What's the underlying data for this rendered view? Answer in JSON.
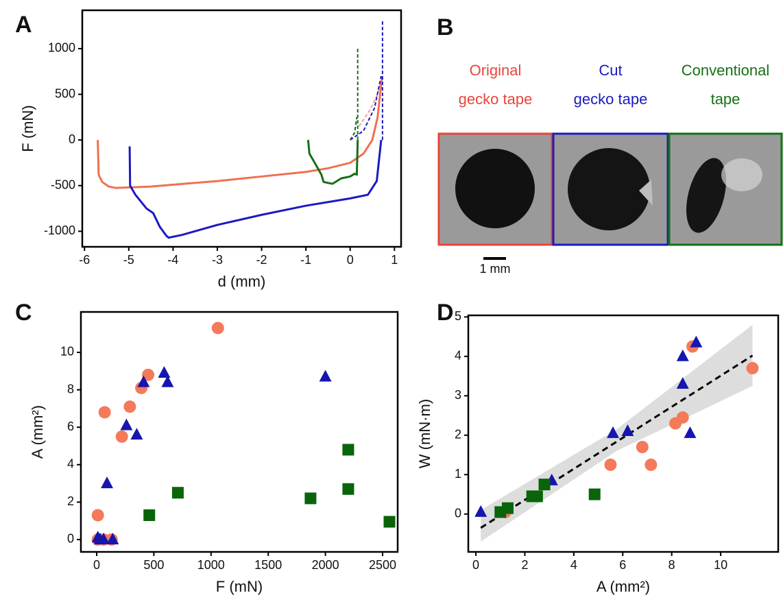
{
  "chart_data": [
    {
      "type": "line",
      "panel_label": "A",
      "x_label": "d (mm)",
      "y_label": "F (mN)",
      "xlim": [
        -6.05,
        1.15
      ],
      "ylim": [
        -1170,
        1420
      ],
      "xticks": [
        -6,
        -5,
        -4,
        -3,
        -2,
        -1,
        0,
        1
      ],
      "yticks": [
        -1000,
        -500,
        0,
        500,
        1000
      ],
      "series": [
        {
          "color": "#f07050",
          "dashed": false,
          "x": [
            -5.7,
            -5.68,
            -5.6,
            -5.45,
            -5.3,
            -4.5,
            -4,
            -3,
            -2,
            -1,
            -0.5,
            0,
            0.3,
            0.5,
            0.62,
            0.72
          ],
          "values": [
            0,
            -380,
            -460,
            -510,
            -525,
            -510,
            -490,
            -450,
            -400,
            -350,
            -310,
            -250,
            -150,
            0,
            250,
            700
          ]
        },
        {
          "color": "#f4a090",
          "dashed": true,
          "x": [
            0.2,
            0.45,
            0.6,
            0.7
          ],
          "values": [
            150,
            330,
            480,
            650
          ]
        },
        {
          "color": "#1a1ac0",
          "dashed": false,
          "x": [
            -4.98,
            -4.97,
            -4.85,
            -4.6,
            -4.45,
            -4.3,
            -4.15,
            -4.1,
            -3.8,
            -3,
            -2,
            -1,
            0,
            0.4,
            0.6,
            0.7
          ],
          "values": [
            -70,
            -500,
            -600,
            -750,
            -800,
            -950,
            -1050,
            -1070,
            -1040,
            -930,
            -820,
            -720,
            -640,
            -600,
            -450,
            0
          ]
        },
        {
          "color": "#1a1ac0",
          "dashed": true,
          "x": [
            0,
            0.3,
            0.55,
            0.7
          ],
          "values": [
            0,
            100,
            350,
            700
          ]
        },
        {
          "color": "#1a1ac0",
          "dashed": true,
          "x": [
            0.73,
            0.73
          ],
          "values": [
            0,
            1300
          ]
        },
        {
          "color": "#157015",
          "dashed": false,
          "x": [
            -0.95,
            -0.92,
            -0.8,
            -0.65,
            -0.6,
            -0.4,
            -0.2,
            0,
            0.1,
            0.15,
            0.17
          ],
          "values": [
            0,
            -150,
            -250,
            -380,
            -460,
            -480,
            -420,
            -400,
            -370,
            -380,
            0
          ]
        },
        {
          "color": "#157015",
          "dashed": true,
          "x": [
            0,
            0.1,
            0.15
          ],
          "values": [
            0,
            80,
            250
          ]
        },
        {
          "color": "#157015",
          "dashed": true,
          "x": [
            0.17,
            0.17
          ],
          "values": [
            0,
            1010
          ]
        }
      ]
    },
    {
      "type": "scatter",
      "panel_label": "C",
      "x_label": "F (mN)",
      "y_label": "A (mm²)",
      "xlim": [
        -138,
        2632
      ],
      "ylim": [
        -0.66,
        12.16
      ],
      "xticks": [
        0,
        500,
        1000,
        1500,
        2000,
        2500
      ],
      "yticks": [
        0,
        2,
        4,
        6,
        8,
        10
      ],
      "series": [
        {
          "color": "#f47a5a",
          "marker": "circle",
          "x": [
            10,
            10,
            60,
            130,
            70,
            220,
            290,
            390,
            450,
            1060
          ],
          "values": [
            1.3,
            0,
            0,
            0,
            6.8,
            5.5,
            7.1,
            8.1,
            8.8,
            11.3
          ]
        },
        {
          "color": "#1515b0",
          "marker": "triangle",
          "x": [
            10,
            30,
            60,
            140,
            90,
            260,
            350,
            410,
            590,
            620,
            2000
          ],
          "values": [
            0.1,
            0,
            0,
            0,
            3,
            6.1,
            5.6,
            8.4,
            8.9,
            8.4,
            8.7
          ]
        },
        {
          "color": "#0a640a",
          "marker": "square",
          "x": [
            460,
            710,
            1870,
            2200,
            2200,
            2560
          ],
          "values": [
            1.3,
            2.5,
            2.2,
            4.8,
            2.7,
            0.95
          ]
        }
      ]
    },
    {
      "type": "scatter",
      "panel_label": "D",
      "x_label": "A (mm²)",
      "y_label": "W (mN·m)",
      "xlim": [
        -0.31,
        12.35
      ],
      "ylim": [
        -0.96,
        5.04
      ],
      "xticks": [
        0,
        2,
        4,
        6,
        8,
        10
      ],
      "yticks": [
        0,
        1,
        2,
        3,
        4,
        5
      ],
      "band": {
        "color": "#dddddd",
        "x": [
          0.2,
          5.75,
          11.3
        ],
        "upper": [
          0.1,
          2.15,
          4.8
        ],
        "lower": [
          -0.7,
          1.6,
          3.25
        ]
      },
      "fit": {
        "color": "#000000",
        "x": [
          0.2,
          11.3
        ],
        "values": [
          -0.35,
          4.02
        ]
      },
      "series": [
        {
          "color": "#f47a5a",
          "marker": "circle",
          "x": [
            1.2,
            5.5,
            6.8,
            7.15,
            8.15,
            8.45,
            8.85,
            11.3
          ],
          "values": [
            0.05,
            1.25,
            1.7,
            1.25,
            2.3,
            2.45,
            4.25,
            3.7
          ]
        },
        {
          "color": "#1515b0",
          "marker": "triangle",
          "x": [
            0.2,
            3.1,
            5.6,
            6.2,
            8.45,
            8.45,
            8.75,
            9.0
          ],
          "values": [
            0.05,
            0.85,
            2.05,
            2.1,
            4.0,
            3.3,
            2.05,
            4.35
          ]
        },
        {
          "color": "#0a640a",
          "marker": "square",
          "x": [
            1.0,
            1.3,
            2.3,
            2.5,
            2.8,
            4.85
          ],
          "values": [
            0.05,
            0.15,
            0.45,
            0.45,
            0.75,
            0.5
          ]
        }
      ]
    }
  ],
  "photos": {
    "panel_label": "B",
    "scale_bar": "1 mm",
    "captions": [
      {
        "lines": [
          "Original",
          "gecko tape"
        ],
        "color": "#e8453c"
      },
      {
        "lines": [
          "Cut",
          "gecko tape"
        ],
        "color": "#1a1ac0"
      },
      {
        "lines": [
          "Conventional",
          "tape"
        ],
        "color": "#157015"
      }
    ]
  }
}
